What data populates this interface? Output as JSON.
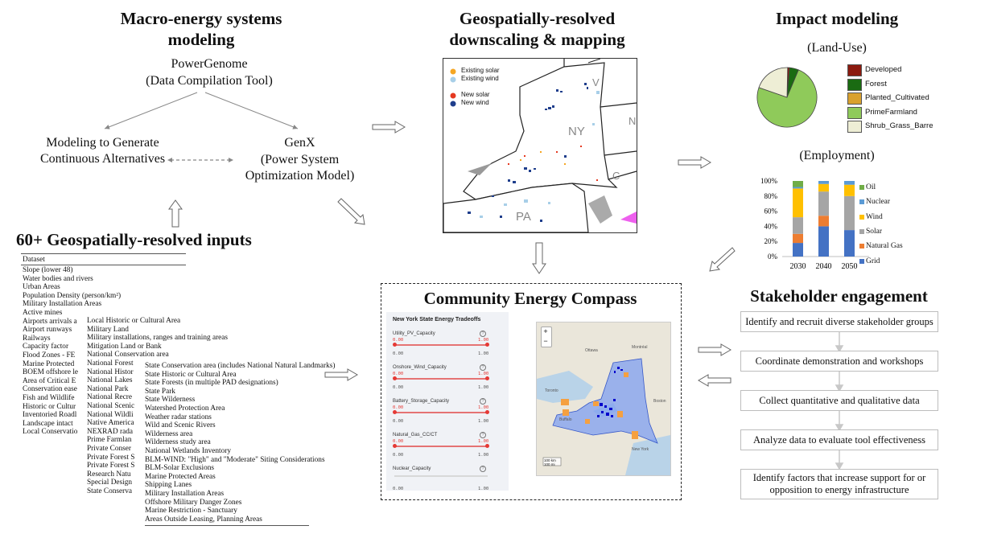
{
  "macro": {
    "title": "Macro-energy systems modeling",
    "powergenome": "PowerGenome",
    "powergenome_sub": "(Data Compilation Tool)",
    "mga": "Modeling to Generate Continuous Alternatives",
    "genx": "GenX",
    "genx_sub": "(Power System Optimization Model)"
  },
  "downscaling": {
    "title": "Geospatially-resolved downscaling & mapping",
    "legend": [
      "Existing solar",
      "Existing wind",
      "New solar",
      "New wind"
    ],
    "state_labels": [
      "NY",
      "PA",
      "V",
      "C",
      "N"
    ],
    "colors": {
      "existing_solar": "#f5a623",
      "existing_wind": "#a8cfe8",
      "new_solar": "#e53921",
      "new_wind": "#1f3e8c"
    }
  },
  "impact": {
    "title": "Impact modeling",
    "landuse_label": "(Land-Use)",
    "landuse_legend": [
      "Developed",
      "Forest",
      "Planted_Cultivated",
      "PrimeFarmland",
      "Shrub_Grass_Barre"
    ],
    "landuse_colors": [
      "#8b1a0f",
      "#1a6b12",
      "#d9a12e",
      "#8fca5a",
      "#eeeed5"
    ],
    "landuse_shares": [
      0.01,
      0.05,
      0.0,
      0.74,
      0.2
    ],
    "employment_label": "(Employment)"
  },
  "chart_data": {
    "type": "bar",
    "categories": [
      "2030",
      "2040",
      "2050"
    ],
    "series": [
      {
        "name": "Grid",
        "values": [
          18,
          40,
          35
        ]
      },
      {
        "name": "Natural Gas",
        "values": [
          12,
          14,
          0
        ]
      },
      {
        "name": "Solar",
        "values": [
          22,
          32,
          45
        ]
      },
      {
        "name": "Wind",
        "values": [
          38,
          10,
          15
        ]
      },
      {
        "name": "Nuclear",
        "values": [
          2,
          4,
          5
        ]
      },
      {
        "name": "Oil",
        "values": [
          8,
          0,
          0
        ]
      }
    ],
    "colors": [
      "#4472c4",
      "#ed7d31",
      "#a5a5a5",
      "#ffc000",
      "#5b9bd5",
      "#70ad47"
    ],
    "yticks": [
      "0%",
      "20%",
      "40%",
      "60%",
      "80%",
      "100%"
    ],
    "ylim": [
      0,
      100
    ],
    "legend_order": [
      "Oil",
      "Nuclear",
      "Wind",
      "Solar",
      "Natural Gas",
      "Grid"
    ]
  },
  "inputs": {
    "title": "60+ Geospatially-resolved inputs",
    "header": "Dataset",
    "col1": [
      "Slope (lower 48)",
      "Water bodies and rivers",
      "Urban Areas",
      "Population Density (person/km²)",
      "Military Installation Areas",
      "Active mines",
      "Airports arrivals a",
      "Airport runways",
      "Railways",
      "Capacity factor",
      "Flood Zones - FE",
      "Marine Protected",
      "BOEM offshore le",
      "Area of Critical E",
      "Conservation ease",
      "Fish and Wildlife",
      "Historic or Cultur",
      "Inventoried Roadl",
      "Landscape intact",
      "Local Conservatio"
    ],
    "col2": [
      "Local Historic or Cultural Area",
      "Military Land",
      "Military installations, ranges and training areas",
      "Mitigation Land or Bank",
      "National Conservation area",
      "National Forest",
      "National Histor",
      "National Lakes",
      "National Park",
      "National Recre",
      "National Scenic",
      "National Wildli",
      "Native America",
      "NEXRAD rada",
      "Prime Farmlan",
      "Private Conser",
      "Private Forest S",
      "Private Forest S",
      "Research Natu",
      "Special Design",
      "State Conserva"
    ],
    "col3": [
      "State Conservation area (includes National Natural Landmarks)",
      "State Historic or Cultural Area",
      "State Forests (in multiple PAD designations)",
      "State Park",
      "State Wilderness",
      "Watershed Protection Area",
      "Weather radar stations",
      "Wild and Scenic Rivers",
      "Wilderness area",
      "Wilderness study area",
      "National Wetlands Inventory",
      "BLM-WIND: \"High\" and \"Moderate\" Siting Considerations",
      "BLM-Solar Exclusions",
      "Marine Protected Areas",
      "Shipping Lanes",
      "Military Installation Areas",
      "Offshore Military Danger Zones",
      "Marine Restriction - Sanctuary",
      "Areas Outside Leasing, Planning Areas"
    ]
  },
  "compass": {
    "title": "Community Energy Compass",
    "app_title": "New York State Energy Tradeoffs",
    "sliders": [
      {
        "label": "Utility_PV_Capacity",
        "min": "0.00",
        "max": "1.00",
        "bmin": "0.00",
        "bmax": "1.00"
      },
      {
        "label": "Onshore_Wind_Capacity",
        "min": "0.00",
        "max": "1.00",
        "bmin": "0.00",
        "bmax": "1.00"
      },
      {
        "label": "Battery_Storage_Capacity",
        "min": "0.00",
        "max": "1.00",
        "bmin": "0.00",
        "bmax": "1.00"
      },
      {
        "label": "Natural_Gas_CC/CT",
        "min": "0.00",
        "max": "1.00",
        "bmin": "0.00",
        "bmax": "1.00"
      },
      {
        "label": "Nuclear_Capacity",
        "min": "",
        "max": "",
        "bmin": "0.00",
        "bmax": "1.00"
      }
    ],
    "zoom_in": "+",
    "zoom_out": "−",
    "scale_km": "100 km",
    "scale_mi": "100 mi",
    "map_places": [
      "Ottawa",
      "Montréal",
      "Toronto",
      "Buffalo",
      "New York",
      "Boston"
    ]
  },
  "stakeholder": {
    "title": "Stakeholder engagement",
    "steps": [
      "Identify and recruit diverse stakeholder groups",
      "Coordinate demonstration and workshops",
      "Collect quantitative and qualitative data",
      "Analyze data to evaluate tool effectiveness",
      "Identify factors that increase support for or opposition to energy infrastructure"
    ]
  }
}
